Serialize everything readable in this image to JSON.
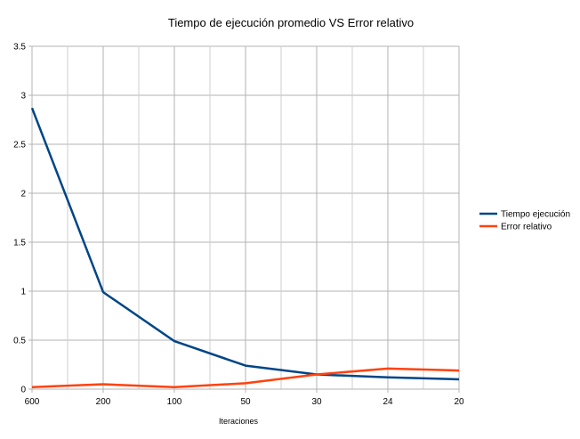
{
  "chart_data": {
    "type": "line",
    "title": "Tiempo de ejecución promedio VS Error relativo",
    "xlabel": "Iteraciones",
    "ylabel": "",
    "categories": [
      "600",
      "200",
      "100",
      "50",
      "30",
      "24",
      "20"
    ],
    "yticks": [
      "0",
      "0.5",
      "1",
      "1.5",
      "2",
      "2.5",
      "3",
      "3.5"
    ],
    "ylim": [
      0,
      3.5
    ],
    "grid": true,
    "legend_position": "right",
    "series": [
      {
        "name": "Tiempo ejecución",
        "color": "#004586",
        "values": [
          2.87,
          0.99,
          0.49,
          0.24,
          0.15,
          0.12,
          0.1
        ]
      },
      {
        "name": "Error relativo",
        "color": "#ff420e",
        "values": [
          0.02,
          0.05,
          0.02,
          0.06,
          0.15,
          0.21,
          0.19
        ]
      }
    ]
  }
}
